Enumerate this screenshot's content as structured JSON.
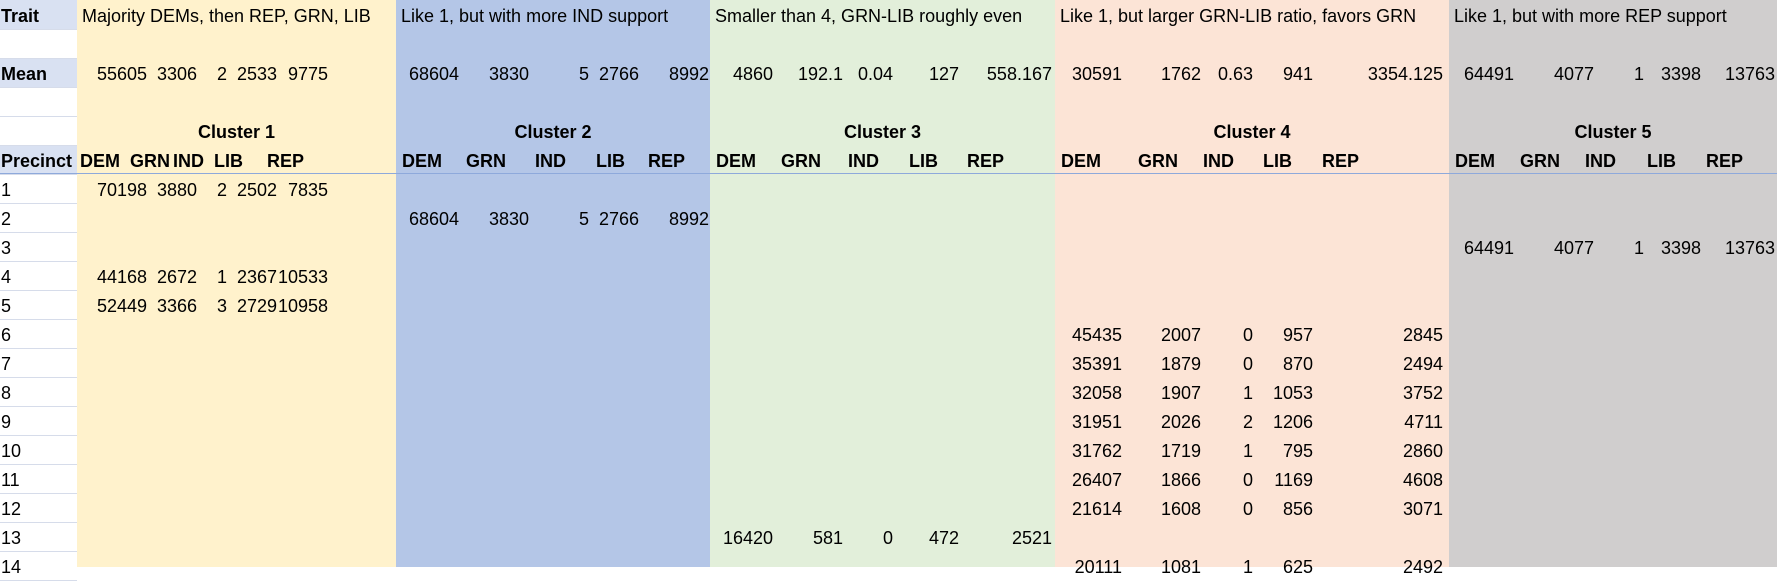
{
  "colors": {
    "cluster1": "#fff2cc",
    "cluster2": "#b4c6e7",
    "cluster3": "#e2efda",
    "cluster4": "#fce4d6",
    "cluster5": "#d0cece",
    "label_highlight": "#d9e1f2"
  },
  "labels": {
    "trait": "Trait",
    "mean": "Mean",
    "precinct": "Precinct"
  },
  "traits": [
    "Majority DEMs, then REP, GRN, LIB",
    "Like 1, but with more IND support",
    "Smaller than 4, GRN-LIB roughly even",
    "Like 1, but larger GRN-LIB ratio, favors GRN",
    "Like 1, but with more REP support"
  ],
  "clusters": [
    "Cluster 1",
    "Cluster 2",
    "Cluster 3",
    "Cluster 4",
    "Cluster 5"
  ],
  "columns": [
    "DEM",
    "GRN",
    "IND",
    "LIB",
    "REP"
  ],
  "means": [
    [
      "55605",
      "3306",
      "2",
      "2533",
      "9775"
    ],
    [
      "68604",
      "3830",
      "5",
      "2766",
      "8992"
    ],
    [
      "4860",
      "192.1",
      "0.04",
      "127",
      "558.167"
    ],
    [
      "30591",
      "1762",
      "0.63",
      "941",
      "3354.125"
    ],
    [
      "64491",
      "4077",
      "1",
      "3398",
      "13763"
    ]
  ],
  "rows": [
    {
      "precinct": "1",
      "cluster": 0,
      "values": [
        "70198",
        "3880",
        "2",
        "2502",
        "7835"
      ]
    },
    {
      "precinct": "2",
      "cluster": 1,
      "values": [
        "68604",
        "3830",
        "5",
        "2766",
        "8992"
      ]
    },
    {
      "precinct": "3",
      "cluster": 4,
      "values": [
        "64491",
        "4077",
        "1",
        "3398",
        "13763"
      ]
    },
    {
      "precinct": "4",
      "cluster": 0,
      "values": [
        "44168",
        "2672",
        "1",
        "2367",
        "10533"
      ]
    },
    {
      "precinct": "5",
      "cluster": 0,
      "values": [
        "52449",
        "3366",
        "3",
        "2729",
        "10958"
      ]
    },
    {
      "precinct": "6",
      "cluster": 3,
      "values": [
        "45435",
        "2007",
        "0",
        "957",
        "2845"
      ]
    },
    {
      "precinct": "7",
      "cluster": 3,
      "values": [
        "35391",
        "1879",
        "0",
        "870",
        "2494"
      ]
    },
    {
      "precinct": "8",
      "cluster": 3,
      "values": [
        "32058",
        "1907",
        "1",
        "1053",
        "3752"
      ]
    },
    {
      "precinct": "9",
      "cluster": 3,
      "values": [
        "31951",
        "2026",
        "2",
        "1206",
        "4711"
      ]
    },
    {
      "precinct": "10",
      "cluster": 3,
      "values": [
        "31762",
        "1719",
        "1",
        "795",
        "2860"
      ]
    },
    {
      "precinct": "11",
      "cluster": 3,
      "values": [
        "26407",
        "1866",
        "0",
        "1169",
        "4608"
      ]
    },
    {
      "precinct": "12",
      "cluster": 3,
      "values": [
        "21614",
        "1608",
        "0",
        "856",
        "3071"
      ]
    },
    {
      "precinct": "13",
      "cluster": 2,
      "values": [
        "16420",
        "581",
        "0",
        "472",
        "2521"
      ]
    },
    {
      "precinct": "14",
      "cluster": 3,
      "values": [
        "20111",
        "1081",
        "1",
        "625",
        "2492"
      ]
    }
  ]
}
